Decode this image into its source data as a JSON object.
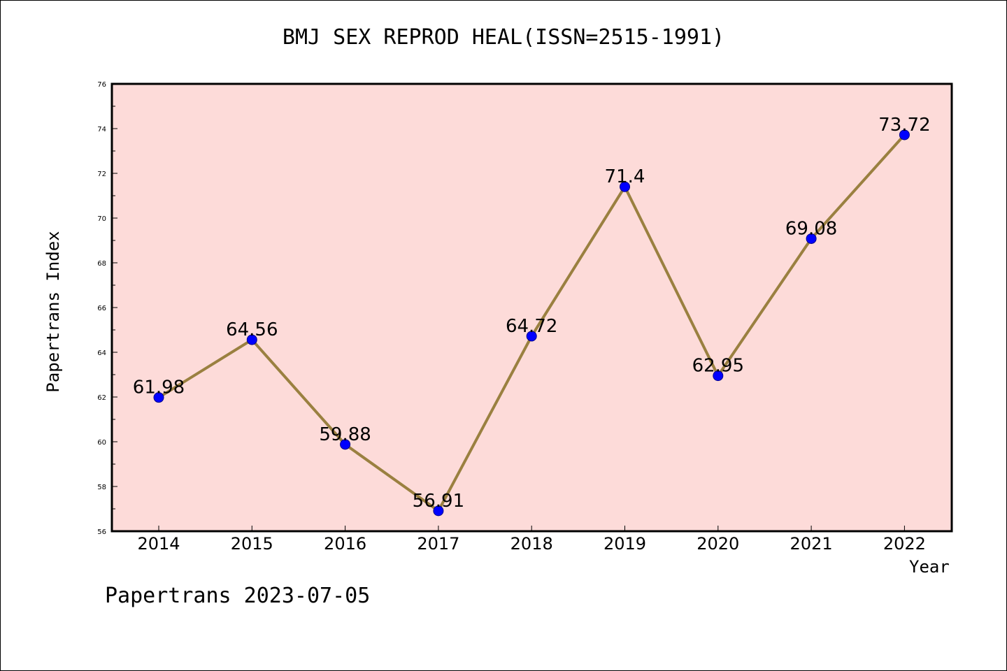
{
  "chart_data": {
    "type": "line",
    "title": "BMJ SEX REPROD HEAL(ISSN=2515-1991)",
    "xlabel": "Year",
    "ylabel": "Papertrans Index",
    "x": [
      "2014",
      "2015",
      "2016",
      "2017",
      "2018",
      "2019",
      "2020",
      "2021",
      "2022"
    ],
    "y_ticks": [
      56,
      58,
      60,
      62,
      64,
      66,
      68,
      70,
      72,
      74,
      76
    ],
    "ylim": [
      56,
      76
    ],
    "series": [
      {
        "values": [
          61.98,
          64.56,
          59.88,
          56.91,
          64.72,
          71.4,
          62.95,
          69.08,
          73.72
        ],
        "labels": [
          "61.98",
          "64.56",
          "59.88",
          "56.91",
          "64.72",
          "71.4",
          "62.95",
          "69.08",
          "73.72"
        ]
      }
    ],
    "colors": {
      "plot_background": "#fddbd9",
      "line": "#9a8040",
      "marker": "#0000ff"
    },
    "grid": false
  },
  "footer": "Papertrans 2023-07-05"
}
